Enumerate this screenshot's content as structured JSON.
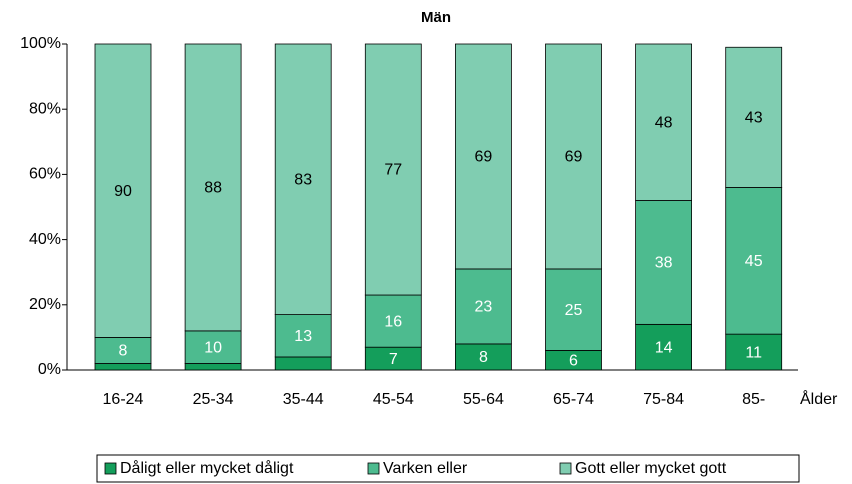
{
  "chart_data": {
    "type": "stacked_bar",
    "title": "Män",
    "x_label": "Ålder",
    "categories": [
      "16-24",
      "25-34",
      "35-44",
      "45-54",
      "55-64",
      "65-74",
      "75-84",
      "85-"
    ],
    "series": [
      {
        "name": "Dåligt eller mycket dåligt",
        "color": "#149e5b",
        "values": [
          2,
          2,
          4,
          7,
          8,
          6,
          14,
          11
        ]
      },
      {
        "name": "Varken eller",
        "color": "#4dbb8f",
        "values": [
          8,
          10,
          13,
          16,
          23,
          25,
          38,
          45
        ]
      },
      {
        "name": "Gott eller mycket gott",
        "color": "#80cdb1",
        "values": [
          90,
          88,
          83,
          77,
          69,
          69,
          48,
          43
        ]
      }
    ],
    "ylim": [
      0,
      100
    ],
    "yticks": [
      {
        "value": 0,
        "label": "0%"
      },
      {
        "value": 20,
        "label": "20%"
      },
      {
        "value": 40,
        "label": "40%"
      },
      {
        "value": 60,
        "label": "60%"
      },
      {
        "value": 80,
        "label": "80%"
      },
      {
        "value": 100,
        "label": "100%"
      }
    ],
    "legend": "bottom"
  }
}
